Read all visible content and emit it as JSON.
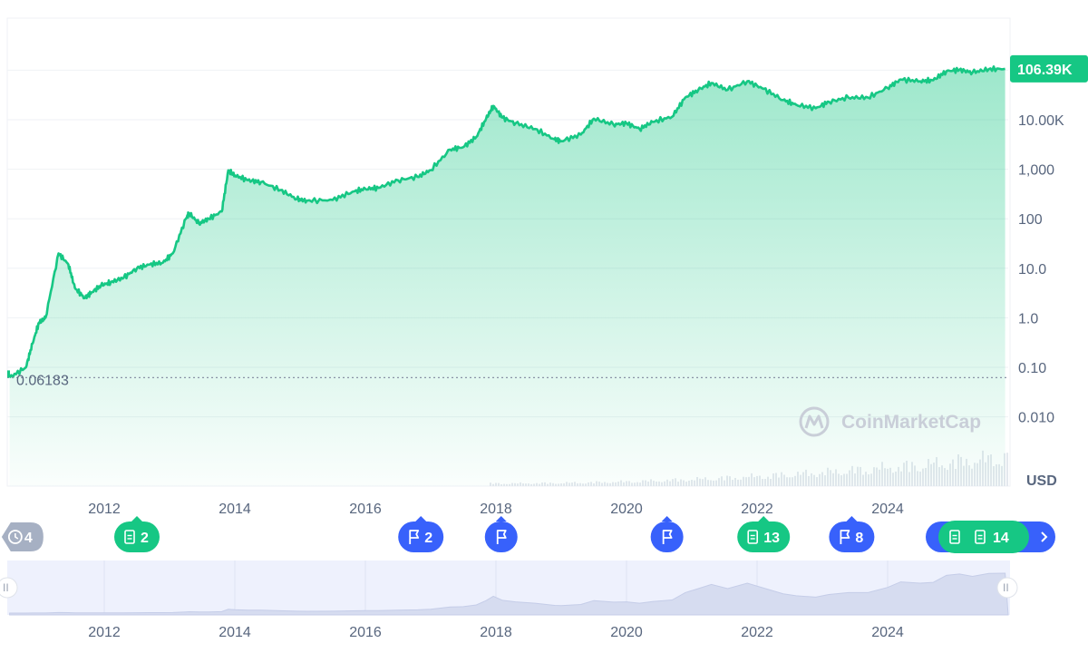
{
  "chart_data": {
    "type": "area",
    "scale": "log",
    "currency_label": "USD",
    "yticks": [
      {
        "value": 0.01,
        "label": "0.010"
      },
      {
        "value": 0.1,
        "label": "0.10"
      },
      {
        "value": 1,
        "label": "1.0"
      },
      {
        "value": 10,
        "label": "10.0"
      },
      {
        "value": 100,
        "label": "100"
      },
      {
        "value": 1000,
        "label": "1,000"
      },
      {
        "value": 10000,
        "label": "10.00K"
      }
    ],
    "xticks": [
      "2012",
      "2014",
      "2016",
      "2018",
      "2020",
      "2022",
      "2024"
    ],
    "current_price": {
      "value": 106390,
      "label": "106.39K"
    },
    "start_price": {
      "value": 0.06183,
      "label": "0.06183"
    },
    "series": [
      {
        "x": [
          2010.55,
          2010.8,
          2010.9,
          2011.0,
          2011.1,
          2011.3,
          2011.45,
          2011.55,
          2011.7,
          2011.8,
          2011.95,
          2012.1,
          2012.3,
          2012.5,
          2012.7,
          2012.9,
          2013.05,
          2013.25,
          2013.3,
          2013.45,
          2013.6,
          2013.8,
          2013.9,
          2014.0,
          2014.2,
          2014.4,
          2014.7,
          2014.95,
          2015.1,
          2015.5,
          2015.8,
          2016.0,
          2016.2,
          2016.5,
          2016.8,
          2017.0,
          2017.3,
          2017.5,
          2017.7,
          2017.85,
          2017.96,
          2018.1,
          2018.3,
          2018.6,
          2018.9,
          2019.0,
          2019.3,
          2019.5,
          2019.8,
          2020.0,
          2020.2,
          2020.4,
          2020.7,
          2020.9,
          2021.1,
          2021.3,
          2021.55,
          2021.85,
          2022.1,
          2022.4,
          2022.6,
          2022.9,
          2023.1,
          2023.4,
          2023.7,
          2024.0,
          2024.2,
          2024.5,
          2024.7,
          2024.9,
          2025.1,
          2025.3,
          2025.55,
          2025.8
        ],
        "y": [
          0.06183,
          0.1,
          0.3,
          0.8,
          1.0,
          20,
          12,
          4,
          2.5,
          3.2,
          4.5,
          5.2,
          6.5,
          10,
          12,
          13,
          20,
          100,
          130,
          80,
          100,
          140,
          950,
          750,
          600,
          550,
          380,
          250,
          230,
          240,
          350,
          400,
          420,
          600,
          700,
          960,
          2500,
          2800,
          4500,
          10500,
          19000,
          11000,
          8500,
          6500,
          4000,
          3700,
          5000,
          10500,
          8000,
          8500,
          6500,
          9000,
          11500,
          28000,
          40000,
          55000,
          40000,
          60000,
          42000,
          25000,
          20000,
          17000,
          23000,
          28000,
          28000,
          44000,
          65000,
          60000,
          63000,
          95000,
          102000,
          90000,
          105000,
          106390
        ]
      }
    ]
  },
  "events": [
    {
      "label": "4",
      "kind": "history",
      "x": 2010.72
    },
    {
      "label": "2",
      "kind": "news",
      "x": 2012.5
    },
    {
      "label": "2",
      "kind": "flag",
      "x": 2016.85
    },
    {
      "label": "",
      "kind": "flag",
      "x": 2018.08
    },
    {
      "label": "",
      "kind": "flag",
      "x": 2020.62
    },
    {
      "label": "13",
      "kind": "news",
      "x": 2022.1
    },
    {
      "label": "8",
      "kind": "flag",
      "x": 2023.45
    },
    {
      "label": "14",
      "kind": "news-group",
      "x": 2025.0
    }
  ],
  "brand": "CoinMarketCap",
  "colors": {
    "line": "#16c784",
    "price_badge": "#16c784",
    "event_blue": "#3861fb",
    "event_green": "#16c784",
    "event_gray": "#a6b0c3",
    "navigator_bg": "#eef1fd"
  }
}
